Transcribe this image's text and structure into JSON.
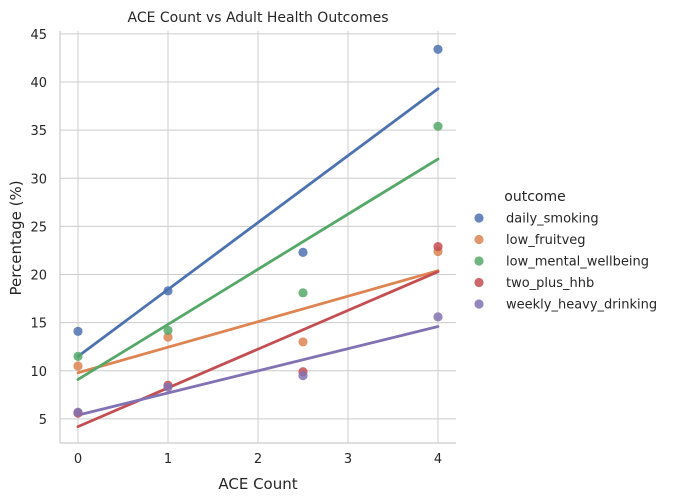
{
  "chart_data": {
    "type": "scatter",
    "title": "ACE Count vs Adult Health Outcomes",
    "xlabel": "ACE Count",
    "ylabel": "Percentage (%)",
    "xlim": [
      -0.2,
      4.2
    ],
    "ylim": [
      2.5,
      45.3
    ],
    "xticks": [
      0,
      1,
      2,
      3,
      4
    ],
    "yticks": [
      5,
      10,
      15,
      20,
      25,
      30,
      35,
      40,
      45
    ],
    "grid": true,
    "legend": {
      "title": "outcome",
      "placement": "right"
    },
    "x": [
      0,
      1,
      2.5,
      4
    ],
    "series": [
      {
        "name": "daily_smoking",
        "color": "#4c72b0",
        "values": [
          14.1,
          18.3,
          22.3,
          43.4
        ],
        "fit": [
          11.5,
          39.3
        ]
      },
      {
        "name": "low_fruitveg",
        "color": "#dd8452",
        "values": [
          10.5,
          13.5,
          13.0,
          22.4
        ],
        "fit": [
          9.8,
          20.4
        ]
      },
      {
        "name": "low_mental_wellbeing",
        "color": "#55a868",
        "values": [
          11.5,
          14.2,
          18.1,
          35.4
        ],
        "fit": [
          9.1,
          32.0
        ]
      },
      {
        "name": "two_plus_hhb",
        "color": "#c44e52",
        "values": [
          5.6,
          8.5,
          9.9,
          22.9
        ],
        "fit": [
          4.2,
          20.3
        ]
      },
      {
        "name": "weekly_heavy_drinking",
        "color": "#8172b3",
        "values": [
          5.7,
          8.3,
          9.5,
          15.6
        ],
        "fit": [
          5.4,
          14.6
        ]
      }
    ]
  }
}
